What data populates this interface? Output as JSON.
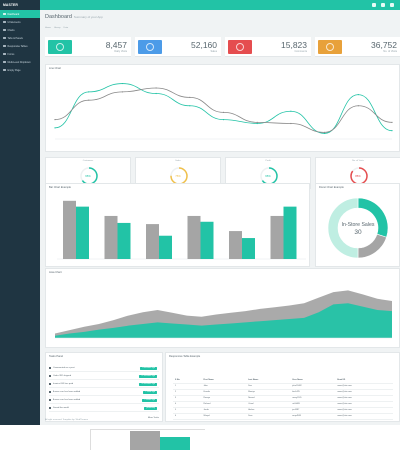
{
  "brand": "MASTER",
  "sidebar": {
    "items": [
      {
        "label": "Dashboard",
        "active": true
      },
      {
        "label": "UI Elements",
        "active": false
      },
      {
        "label": "Charts",
        "active": false
      },
      {
        "label": "Tabs & Panels",
        "active": false
      },
      {
        "label": "Responsive Tables",
        "active": false
      },
      {
        "label": "Forms",
        "active": false
      },
      {
        "label": "Multi-Level Dropdown",
        "active": false
      },
      {
        "label": "Empty Page",
        "active": false
      }
    ]
  },
  "header": {
    "title": "Dashboard",
    "subtitle": "Summary of your App"
  },
  "breadcrumb": [
    "Home",
    "Library",
    "Data"
  ],
  "stats": [
    {
      "value": "8,457",
      "label": "Daily Visits",
      "color": "#22c3a6"
    },
    {
      "value": "52,160",
      "label": "Sales",
      "color": "#4c9be8"
    },
    {
      "value": "15,823",
      "label": "Comments",
      "color": "#e54d4f"
    },
    {
      "value": "36,752",
      "label": "No. of Visits",
      "color": "#e8a13a"
    }
  ],
  "line_chart_title": "Line Chart",
  "gauges": [
    {
      "label": "Customers",
      "value": "65%",
      "color": "#22c3a6",
      "fraction": 0.65
    },
    {
      "label": "Sales",
      "value": "75%",
      "color": "#f0c04a",
      "fraction": 0.75
    },
    {
      "label": "Profit",
      "value": "65%",
      "color": "#22c3a6",
      "fraction": 0.65
    },
    {
      "label": "No. of Visits",
      "value": "85%",
      "color": "#e54d4f",
      "fraction": 0.85
    }
  ],
  "bar_chart_title": "Bar Chart Example",
  "donut_title": "Donut Chart Example",
  "donut": {
    "label": "In-Store Sales",
    "value": "30"
  },
  "area_chart_title": "Area Chart",
  "tasks_title": "Tasks Panel",
  "tasks": [
    {
      "text": "Commented on a post",
      "badge": "4 minutes ago"
    },
    {
      "text": "Order 392 shipped",
      "badge": "12 minutes ago"
    },
    {
      "text": "Invoice 653 has paid",
      "badge": "24 minutes ago"
    },
    {
      "text": "A new user has been added",
      "badge": "1 hour ago"
    },
    {
      "text": "A new user has been added",
      "badge": "2 hours ago"
    },
    {
      "text": "Saved the world",
      "badge": "yesterday"
    }
  ],
  "more_tasks": "More Tasks",
  "table_title": "Responsive Table Example",
  "table": {
    "headers": [
      "S No.",
      "First Name",
      "Last Name",
      "User Name",
      "Email ID"
    ],
    "rows": [
      [
        "1",
        "John",
        "Doe",
        "john15482",
        "name@site.com"
      ],
      [
        "2",
        "Kimsila",
        "Marriye",
        "kim1425",
        "name@site.com"
      ],
      [
        "3",
        "Rossye",
        "Nermal",
        "rossy1245",
        "name@site.com"
      ],
      [
        "4",
        "Richard",
        "Orieal",
        "rich5685",
        "name@site.com"
      ],
      [
        "5",
        "Jacob",
        "Hielsar",
        "jac4587",
        "name@site.com"
      ],
      [
        "6",
        "Wrapel",
        "Dere",
        "wrap4585",
        "name@site.com"
      ]
    ]
  },
  "footer": "All right reserved. Template by: WebThemez",
  "chart_data": [
    {
      "type": "line",
      "title": "Line Chart",
      "x": [
        1,
        2,
        3,
        4,
        5,
        6,
        7,
        8,
        9,
        10,
        11
      ],
      "series": [
        {
          "values": [
            20,
            85,
            100,
            82,
            60,
            35,
            28,
            50,
            10,
            80,
            15
          ],
          "color": "#22c3a6"
        },
        {
          "values": [
            35,
            70,
            85,
            92,
            75,
            48,
            30,
            28,
            12,
            60,
            30
          ],
          "color": "#888888"
        }
      ],
      "ylim": [
        0,
        110
      ]
    },
    {
      "type": "bar",
      "title": "Bar Chart Example",
      "categories": [
        "1",
        "2",
        "3",
        "4",
        "5",
        "6"
      ],
      "series": [
        {
          "values": [
            100,
            74,
            60,
            74,
            48,
            74
          ],
          "color": "#a5a5a5"
        },
        {
          "values": [
            90,
            62,
            40,
            64,
            36,
            90
          ],
          "color": "#22c3a6"
        }
      ],
      "ylim": [
        0,
        110
      ]
    },
    {
      "type": "pie",
      "title": "Donut Chart Example",
      "slices": [
        {
          "label": "In-Store Sales",
          "value": 30,
          "color": "#22c3a6"
        },
        {
          "value": 20,
          "color": "#a5a5a5"
        },
        {
          "value": 50,
          "color": "#bfeee2"
        }
      ]
    },
    {
      "type": "area",
      "title": "Area Chart",
      "x": [
        1,
        2,
        3,
        4,
        5,
        6,
        7,
        8,
        9,
        10,
        11,
        12,
        13,
        14,
        15,
        16,
        17,
        18,
        19,
        20,
        21,
        22,
        23,
        24
      ],
      "series": [
        {
          "values": [
            8,
            14,
            20,
            25,
            32,
            40,
            46,
            50,
            45,
            40,
            38,
            42,
            45,
            48,
            52,
            55,
            58,
            62,
            72,
            82,
            85,
            78,
            70,
            66
          ],
          "color": "#a5a5a5"
        },
        {
          "values": [
            4,
            8,
            11,
            15,
            18,
            22,
            25,
            28,
            26,
            24,
            22,
            24,
            26,
            28,
            30,
            32,
            34,
            36,
            46,
            60,
            62,
            56,
            50,
            48
          ],
          "color": "#22c3a6"
        }
      ],
      "ylim": [
        0,
        100
      ]
    }
  ]
}
